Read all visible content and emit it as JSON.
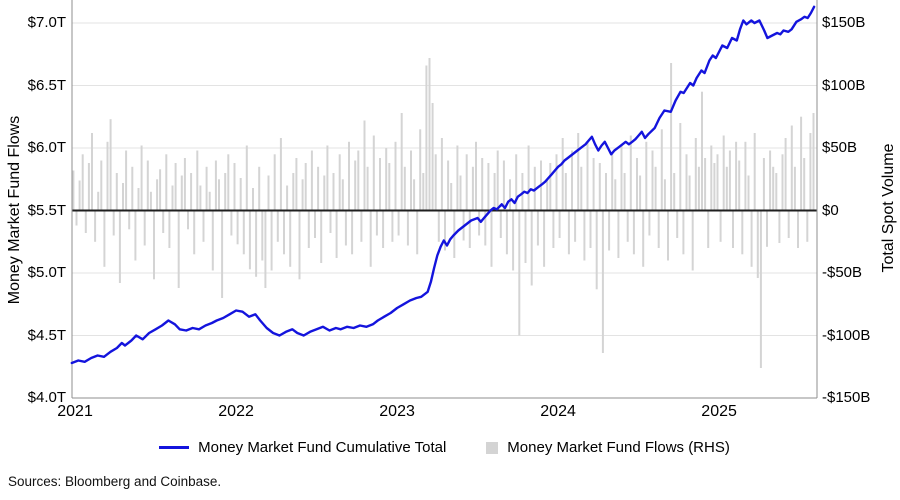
{
  "chart_data": {
    "type": "bar+line combo, dual axis",
    "x_axis": {
      "range": [
        2020.981,
        2025.608
      ],
      "ticks": [
        {
          "v": 2021,
          "label": "2021"
        },
        {
          "v": 2022,
          "label": "2022"
        },
        {
          "v": 2023,
          "label": "2023"
        },
        {
          "v": 2024,
          "label": "2024"
        },
        {
          "v": 2025,
          "label": "2025"
        }
      ]
    },
    "left_axis": {
      "title": "Money Market Fund Flows",
      "range": [
        4.0,
        7.184
      ],
      "ticks": [
        {
          "v": 4.0,
          "label": "$4.0T"
        },
        {
          "v": 4.5,
          "label": "$4.5T"
        },
        {
          "v": 5.0,
          "label": "$5.0T"
        },
        {
          "v": 5.5,
          "label": "$5.5T"
        },
        {
          "v": 6.0,
          "label": "$6.0T"
        },
        {
          "v": 6.5,
          "label": "$6.5T"
        },
        {
          "v": 7.0,
          "label": "$7.0T"
        }
      ]
    },
    "right_axis": {
      "title": "Total Spot Volume",
      "range": [
        -150,
        168.4
      ],
      "ticks": [
        {
          "v": -150,
          "label": "-$150B"
        },
        {
          "v": -100,
          "label": "-$100B"
        },
        {
          "v": -50,
          "label": "-$50B"
        },
        {
          "v": 0,
          "label": "$0"
        },
        {
          "v": 50,
          "label": "$50B"
        },
        {
          "v": 100,
          "label": "$100B"
        },
        {
          "v": 150,
          "label": "$150B"
        }
      ]
    },
    "colors": {
      "line": "#1414dd",
      "bars": "#d4d4d4",
      "grid": "#e3e3e3",
      "spine": "#8f8f8f",
      "zero_line": "#1f1f1f"
    },
    "line_series": {
      "name": "Money Market Fund Cumulative Total",
      "axis": "left",
      "color": "#1414dd",
      "units": "trillions of dollars",
      "x": [
        2020.98,
        2021.02,
        2021.06,
        2021.1,
        2021.14,
        2021.18,
        2021.22,
        2021.26,
        2021.29,
        2021.31,
        2021.35,
        2021.38,
        2021.42,
        2021.46,
        2021.5,
        2021.54,
        2021.58,
        2021.62,
        2021.65,
        2021.69,
        2021.73,
        2021.77,
        2021.81,
        2021.85,
        2021.88,
        2021.92,
        2021.96,
        2022.0,
        2022.04,
        2022.08,
        2022.12,
        2022.15,
        2022.19,
        2022.23,
        2022.27,
        2022.31,
        2022.35,
        2022.38,
        2022.42,
        2022.46,
        2022.5,
        2022.54,
        2022.58,
        2022.62,
        2022.65,
        2022.69,
        2022.73,
        2022.77,
        2022.81,
        2022.85,
        2022.88,
        2022.92,
        2022.96,
        2023.0,
        2023.04,
        2023.08,
        2023.12,
        2023.15,
        2023.19,
        2023.21,
        2023.23,
        2023.25,
        2023.27,
        2023.29,
        2023.31,
        2023.33,
        2023.35,
        2023.38,
        2023.42,
        2023.46,
        2023.5,
        2023.52,
        2023.54,
        2023.56,
        2023.58,
        2023.6,
        2023.62,
        2023.65,
        2023.67,
        2023.69,
        2023.71,
        2023.73,
        2023.75,
        2023.77,
        2023.79,
        2023.81,
        2023.83,
        2023.85,
        2023.88,
        2023.9,
        2023.92,
        2023.94,
        2023.96,
        2023.98,
        2024.0,
        2024.02,
        2024.04,
        2024.06,
        2024.08,
        2024.1,
        2024.12,
        2024.15,
        2024.17,
        2024.19,
        2024.21,
        2024.23,
        2024.25,
        2024.27,
        2024.29,
        2024.31,
        2024.33,
        2024.35,
        2024.38,
        2024.4,
        2024.42,
        2024.44,
        2024.46,
        2024.48,
        2024.5,
        2024.52,
        2024.54,
        2024.56,
        2024.6,
        2024.63,
        2024.66,
        2024.7,
        2024.73,
        2024.76,
        2024.78,
        2024.82,
        2024.84,
        2024.86,
        2024.89,
        2024.91,
        2024.94,
        2024.96,
        2024.98,
        2025.02,
        2025.05,
        2025.08,
        2025.11,
        2025.13,
        2025.15,
        2025.17,
        2025.2,
        2025.22,
        2025.25,
        2025.28,
        2025.3,
        2025.33,
        2025.36,
        2025.38,
        2025.4,
        2025.43,
        2025.45,
        2025.48,
        2025.51,
        2025.53,
        2025.55,
        2025.57,
        2025.59
      ],
      "values": [
        4.28,
        4.3,
        4.29,
        4.32,
        4.34,
        4.33,
        4.37,
        4.4,
        4.44,
        4.42,
        4.46,
        4.5,
        4.47,
        4.52,
        4.55,
        4.58,
        4.62,
        4.59,
        4.55,
        4.54,
        4.56,
        4.55,
        4.58,
        4.6,
        4.62,
        4.64,
        4.67,
        4.7,
        4.69,
        4.65,
        4.67,
        4.62,
        4.56,
        4.52,
        4.5,
        4.53,
        4.55,
        4.52,
        4.5,
        4.53,
        4.55,
        4.57,
        4.54,
        4.56,
        4.55,
        4.57,
        4.56,
        4.58,
        4.57,
        4.59,
        4.62,
        4.65,
        4.68,
        4.72,
        4.75,
        4.78,
        4.8,
        4.81,
        4.85,
        4.93,
        5.04,
        5.14,
        5.21,
        5.26,
        5.22,
        5.27,
        5.3,
        5.34,
        5.38,
        5.42,
        5.44,
        5.41,
        5.44,
        5.47,
        5.5,
        5.52,
        5.51,
        5.55,
        5.52,
        5.57,
        5.59,
        5.56,
        5.61,
        5.63,
        5.65,
        5.64,
        5.67,
        5.66,
        5.69,
        5.71,
        5.73,
        5.76,
        5.79,
        5.82,
        5.85,
        5.87,
        5.9,
        5.92,
        5.94,
        5.96,
        5.98,
        6.01,
        6.03,
        6.06,
        6.09,
        6.03,
        5.98,
        6.02,
        6.05,
        6.0,
        5.95,
        5.98,
        6.01,
        6.03,
        6.05,
        6.03,
        6.05,
        6.07,
        6.1,
        6.13,
        6.08,
        6.11,
        6.16,
        6.24,
        6.3,
        6.29,
        6.38,
        6.45,
        6.44,
        6.52,
        6.5,
        6.56,
        6.62,
        6.6,
        6.7,
        6.74,
        6.72,
        6.82,
        6.8,
        6.88,
        6.86,
        6.95,
        7.02,
        6.99,
        7.02,
        7.0,
        7.02,
        6.94,
        6.88,
        6.9,
        6.92,
        6.91,
        6.94,
        6.93,
        6.95,
        7.01,
        7.03,
        7.05,
        7.04,
        7.08,
        7.13
      ]
    },
    "bar_series": {
      "name": "Money Market Fund Flows (RHS)",
      "axis": "right",
      "color": "#d4d4d4",
      "units": "billions of dollars, weekly",
      "start_year": 2020.99,
      "step_years": 0.019231,
      "values": [
        32,
        -12,
        24,
        45,
        -18,
        38,
        62,
        -25,
        15,
        40,
        -45,
        55,
        73,
        -20,
        30,
        -58,
        22,
        48,
        -15,
        35,
        -40,
        18,
        52,
        -28,
        40,
        15,
        -55,
        25,
        33,
        -18,
        45,
        -30,
        20,
        38,
        -62,
        28,
        42,
        -15,
        30,
        -35,
        48,
        20,
        -25,
        35,
        15,
        -48,
        40,
        25,
        -70,
        30,
        45,
        -20,
        38,
        -27,
        26,
        -35,
        52,
        -47,
        18,
        -53,
        35,
        -40,
        -62,
        28,
        -48,
        45,
        -25,
        58,
        -35,
        20,
        -45,
        30,
        42,
        -55,
        25,
        38,
        -30,
        48,
        -22,
        35,
        -42,
        28,
        52,
        -18,
        30,
        -38,
        45,
        25,
        -28,
        55,
        -35,
        40,
        48,
        -25,
        72,
        35,
        -45,
        60,
        -20,
        42,
        -30,
        50,
        38,
        -25,
        55,
        -20,
        78,
        35,
        -28,
        48,
        25,
        -35,
        65,
        30,
        116,
        122,
        86,
        45,
        -25,
        58,
        -32,
        40,
        22,
        -38,
        52,
        28,
        -24,
        45,
        -30,
        35,
        55,
        -20,
        42,
        -28,
        38,
        -45,
        30,
        48,
        -22,
        40,
        -35,
        25,
        -48,
        45,
        -100,
        30,
        -42,
        52,
        -60,
        35,
        -28,
        40,
        -45,
        25,
        38,
        -30,
        45,
        -22,
        58,
        30,
        -35,
        48,
        -25,
        62,
        35,
        -40,
        55,
        -30,
        42,
        -63,
        38,
        -114,
        30,
        -32,
        45,
        25,
        -38,
        52,
        30,
        -25,
        60,
        -35,
        42,
        28,
        -45,
        55,
        -20,
        48,
        35,
        -30,
        65,
        25,
        -40,
        118,
        30,
        -22,
        70,
        -35,
        45,
        28,
        -48,
        58,
        35,
        95,
        42,
        -30,
        52,
        38,
        45,
        -25,
        60,
        35,
        48,
        -30,
        55,
        40,
        -35,
        55,
        28,
        -45,
        62,
        -54,
        -126,
        42,
        -29,
        48,
        35,
        30,
        -26,
        45,
        58,
        -22,
        68,
        35,
        -30,
        75,
        42,
        -25,
        62,
        78
      ]
    },
    "grid": "horizontal only",
    "legend_position": "bottom center"
  },
  "footer": {
    "sources": "Sources: Bloomberg and Coinbase."
  }
}
